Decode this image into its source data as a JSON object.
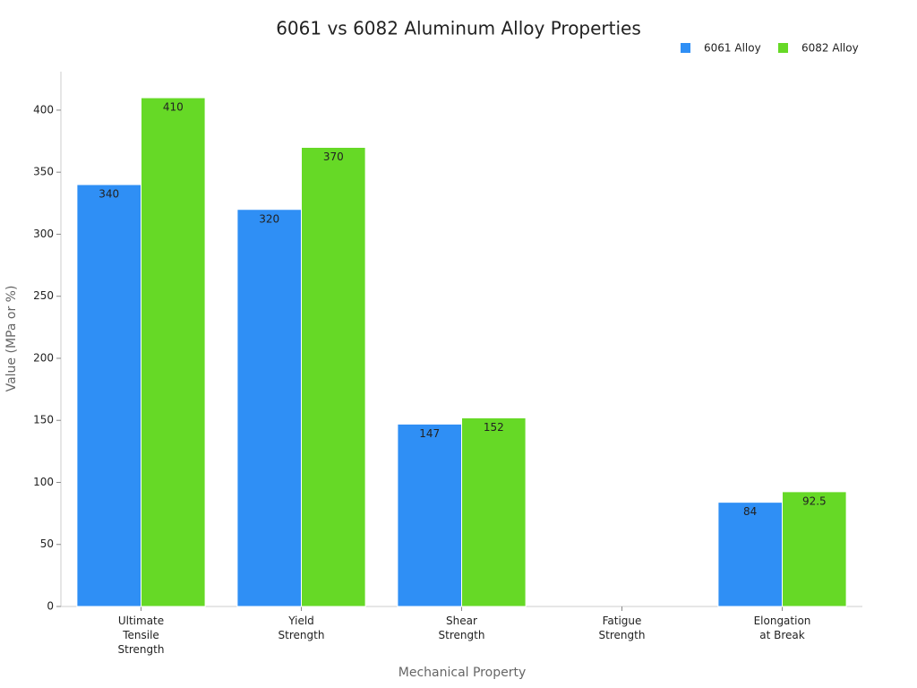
{
  "chart_data": {
    "type": "bar",
    "title": "6061 vs 6082 Aluminum Alloy Properties",
    "x_label": "Mechanical Property",
    "y_label": "Value (MPa or %)",
    "categories": [
      [
        "Ultimate",
        "Tensile",
        "Strength"
      ],
      [
        "Yield",
        "Strength"
      ],
      [
        "Shear",
        "Strength"
      ],
      [
        "Fatigue",
        "Strength"
      ],
      [
        "Elongation",
        "at Break"
      ]
    ],
    "series": [
      {
        "name": "6061 Alloy",
        "color": "#2f8ff5",
        "values": [
          340,
          320,
          147,
          null,
          84
        ]
      },
      {
        "name": "6082 Alloy",
        "color": "#66d926",
        "values": [
          410,
          370,
          152,
          null,
          92.5
        ]
      }
    ],
    "ylim": [
      0,
      431
    ],
    "yticks": [
      0,
      50,
      100,
      150,
      200,
      250,
      300,
      350,
      400
    ],
    "legend": "top-right",
    "grid": false
  }
}
